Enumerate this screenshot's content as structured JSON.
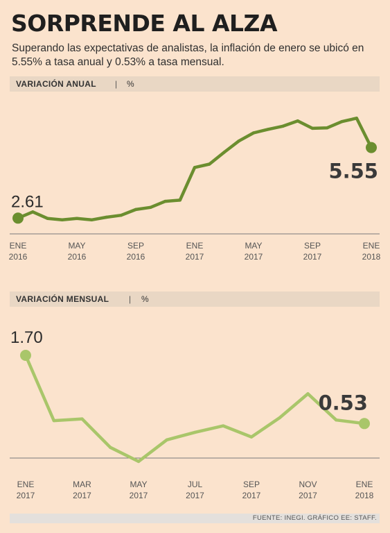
{
  "header": {
    "title": "SORPRENDE AL ALZA",
    "subtitle": "Superando las expectativas de analistas, la inflación de enero se ubicó en 5.55% a tasa anual y 0.53% a tasa mensual."
  },
  "colors": {
    "annual_line": "#6b8e2f",
    "monthly_line": "#a9c66a",
    "axis": "#7a7a7a",
    "background": "#fbe3cd"
  },
  "chart_data": [
    {
      "type": "line",
      "section_label": "VARIACIÓN ANUAL",
      "separator": "|",
      "unit": "%",
      "x": [
        "ENE 2016",
        "FEB 2016",
        "MAR 2016",
        "ABR 2016",
        "MAY 2016",
        "JUN 2016",
        "JUL 2016",
        "AGO 2016",
        "SEP 2016",
        "OCT 2016",
        "NOV 2016",
        "DIC 2016",
        "ENE 2017",
        "FEB 2017",
        "MAR 2017",
        "ABR 2017",
        "MAY 2017",
        "JUN 2017",
        "JUL 2017",
        "AGO 2017",
        "SEP 2017",
        "OCT 2017",
        "NOV 2017",
        "DIC 2017",
        "ENE 2018"
      ],
      "values": [
        2.61,
        2.87,
        2.6,
        2.54,
        2.6,
        2.54,
        2.65,
        2.73,
        2.97,
        3.06,
        3.31,
        3.36,
        4.72,
        4.86,
        5.35,
        5.82,
        6.16,
        6.31,
        6.44,
        6.66,
        6.35,
        6.37,
        6.63,
        6.77,
        5.55
      ],
      "ylim": [
        2.1,
        7.3
      ],
      "tick_labels": [
        {
          "index": 0,
          "month": "ENE",
          "year": "2016"
        },
        {
          "index": 4,
          "month": "MAY",
          "year": "2016"
        },
        {
          "index": 8,
          "month": "SEP",
          "year": "2016"
        },
        {
          "index": 12,
          "month": "ENE",
          "year": "2017"
        },
        {
          "index": 16,
          "month": "MAY",
          "year": "2017"
        },
        {
          "index": 20,
          "month": "SEP",
          "year": "2017"
        },
        {
          "index": 24,
          "month": "ENE",
          "year": "2018"
        }
      ],
      "start_label": "2.61",
      "end_label": "5.55"
    },
    {
      "type": "line",
      "section_label": "VARIACIÓN MENSUAL",
      "separator": "|",
      "unit": "%",
      "x": [
        "ENE 2017",
        "FEB 2017",
        "MAR 2017",
        "ABR 2017",
        "MAY 2017",
        "JUN 2017",
        "JUL 2017",
        "AGO 2017",
        "SEP 2017",
        "OCT 2017",
        "NOV 2017",
        "DIC 2017",
        "ENE 2018"
      ],
      "values": [
        1.7,
        0.58,
        0.61,
        0.12,
        -0.12,
        0.25,
        0.38,
        0.49,
        0.3,
        0.63,
        1.04,
        0.59,
        0.53
      ],
      "ylim": [
        -0.3,
        2.2
      ],
      "tick_labels": [
        {
          "index": 0,
          "month": "ENE",
          "year": "2017"
        },
        {
          "index": 2,
          "month": "MAR",
          "year": "2017"
        },
        {
          "index": 4,
          "month": "MAY",
          "year": "2017"
        },
        {
          "index": 6,
          "month": "JUL",
          "year": "2017"
        },
        {
          "index": 8,
          "month": "SEP",
          "year": "2017"
        },
        {
          "index": 10,
          "month": "NOV",
          "year": "2017"
        },
        {
          "index": 12,
          "month": "ENE",
          "year": "2018"
        }
      ],
      "start_label": "1.70",
      "end_label": "0.53"
    }
  ],
  "footer": {
    "source": "FUENTE: INEGI. GRÁFICO EE: STAFF."
  }
}
